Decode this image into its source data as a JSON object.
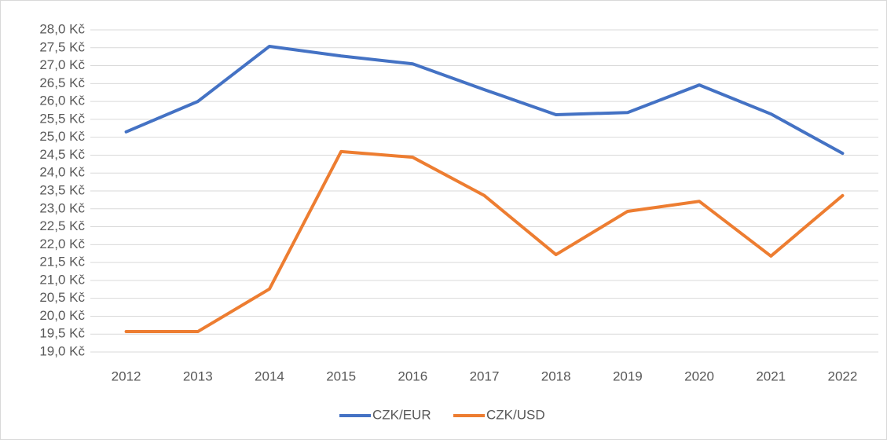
{
  "chart_data": {
    "type": "line",
    "categories": [
      "2012",
      "2013",
      "2014",
      "2015",
      "2016",
      "2017",
      "2018",
      "2019",
      "2020",
      "2021",
      "2022"
    ],
    "series": [
      {
        "name": "CZK/EUR",
        "color": "#4472c4",
        "values": [
          25.15,
          26.0,
          27.54,
          27.27,
          27.05,
          26.33,
          25.63,
          25.69,
          26.46,
          25.65,
          24.55
        ]
      },
      {
        "name": "CZK/USD",
        "color": "#ed7d31",
        "values": [
          19.57,
          19.57,
          20.76,
          24.6,
          24.44,
          23.37,
          21.72,
          22.93,
          23.21,
          21.68,
          23.37
        ]
      }
    ],
    "ylim": [
      19.0,
      28.0
    ],
    "yticks": [
      {
        "value": 19.0,
        "label": "19,0 Kč"
      },
      {
        "value": 19.5,
        "label": "19,5 Kč"
      },
      {
        "value": 20.0,
        "label": "20,0 Kč"
      },
      {
        "value": 20.5,
        "label": "20,5 Kč"
      },
      {
        "value": 21.0,
        "label": "21,0 Kč"
      },
      {
        "value": 21.5,
        "label": "21,5 Kč"
      },
      {
        "value": 22.0,
        "label": "22,0 Kč"
      },
      {
        "value": 22.5,
        "label": "22,5 Kč"
      },
      {
        "value": 23.0,
        "label": "23,0 Kč"
      },
      {
        "value": 23.5,
        "label": "23,5 Kč"
      },
      {
        "value": 24.0,
        "label": "24,0 Kč"
      },
      {
        "value": 24.5,
        "label": "24,5 Kč"
      },
      {
        "value": 25.0,
        "label": "25,0 Kč"
      },
      {
        "value": 25.5,
        "label": "25,5 Kč"
      },
      {
        "value": 26.0,
        "label": "26,0 Kč"
      },
      {
        "value": 26.5,
        "label": "26,5 Kč"
      },
      {
        "value": 27.0,
        "label": "27,0 Kč"
      },
      {
        "value": 27.5,
        "label": "27,5 Kč"
      },
      {
        "value": 28.0,
        "label": "28,0 Kč"
      }
    ],
    "grid": true,
    "legend": "bottom"
  }
}
